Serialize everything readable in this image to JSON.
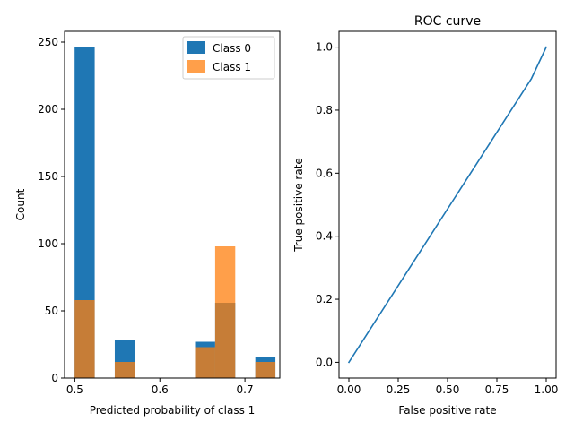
{
  "chart_data": [
    {
      "type": "bar",
      "title": "",
      "xlabel": "Predicted probability of class 1",
      "ylabel": "Count",
      "xlim": [
        0.488,
        0.741
      ],
      "ylim": [
        0,
        258
      ],
      "xticks": [
        0.5,
        0.6,
        0.7
      ],
      "xtick_labels": [
        "0.5",
        "0.6",
        "0.7"
      ],
      "yticks": [
        0,
        50,
        100,
        150,
        200,
        250
      ],
      "ytick_labels": [
        "0",
        "50",
        "100",
        "150",
        "200",
        "250"
      ],
      "legend": "top-right",
      "series": [
        {
          "name": "Class 0",
          "color": "#1f77b4",
          "opacity": 1,
          "bins": [
            {
              "x0": 0.4998,
              "x1": 0.5234,
              "value": 246
            },
            {
              "x0": 0.547,
              "x1": 0.5706,
              "value": 28
            },
            {
              "x0": 0.6414,
              "x1": 0.665,
              "value": 27
            },
            {
              "x0": 0.665,
              "x1": 0.6886,
              "value": 56
            },
            {
              "x0": 0.7122,
              "x1": 0.7358,
              "value": 16
            }
          ]
        },
        {
          "name": "Class 1",
          "color": "#ff7f0e",
          "opacity": 0.75,
          "bins": [
            {
              "x0": 0.4998,
              "x1": 0.5234,
              "value": 58
            },
            {
              "x0": 0.547,
              "x1": 0.5706,
              "value": 12
            },
            {
              "x0": 0.6414,
              "x1": 0.665,
              "value": 23
            },
            {
              "x0": 0.665,
              "x1": 0.6886,
              "value": 98
            },
            {
              "x0": 0.7122,
              "x1": 0.7358,
              "value": 12
            }
          ]
        }
      ]
    },
    {
      "type": "line",
      "title": "ROC curve",
      "xlabel": "False positive rate",
      "ylabel": "True positive rate",
      "xlim": [
        -0.05,
        1.05
      ],
      "ylim": [
        -0.05,
        1.05
      ],
      "xticks": [
        0.0,
        0.25,
        0.5,
        0.75,
        1.0
      ],
      "xtick_labels": [
        "0.00",
        "0.25",
        "0.50",
        "0.75",
        "1.00"
      ],
      "yticks": [
        0.0,
        0.2,
        0.4,
        0.6,
        0.8,
        1.0
      ],
      "ytick_labels": [
        "0.0",
        "0.2",
        "0.4",
        "0.6",
        "0.8",
        "1.0"
      ],
      "series": [
        {
          "name": "",
          "color": "#1f77b4",
          "x": [
            0.0,
            0.925,
            1.0
          ],
          "y": [
            0.0,
            0.9,
            1.0
          ]
        }
      ]
    }
  ]
}
